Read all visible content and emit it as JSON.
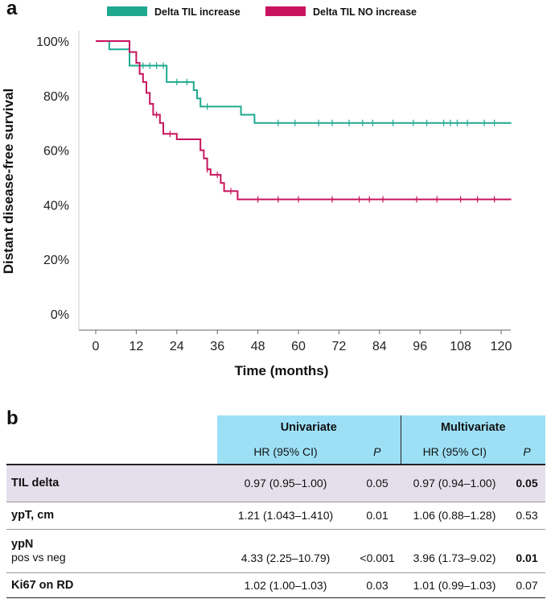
{
  "panel_a_label": "a",
  "panel_b_label": "b",
  "colors": {
    "increase": "#1ea98f",
    "no_increase": "#c8145e",
    "header_bg": "#9de0f6",
    "shaded_row": "#e5dfec"
  },
  "chart_data": {
    "type": "line",
    "title": "",
    "xlabel": "Time (months)",
    "ylabel": "Distant disease-free survival",
    "xlim": [
      -5,
      122
    ],
    "ylim": [
      -5,
      102
    ],
    "x_ticks": [
      0,
      12,
      24,
      36,
      48,
      60,
      72,
      84,
      96,
      108,
      120
    ],
    "y_ticks": [
      0,
      20,
      40,
      60,
      80,
      100
    ],
    "y_tick_labels": [
      "0%",
      "20%",
      "40%",
      "60%",
      "80%",
      "100%"
    ],
    "legend_position": "top",
    "series": [
      {
        "name": "Delta TIL increase",
        "color": "#1ea98f",
        "steps": [
          [
            0,
            100
          ],
          [
            4,
            100
          ],
          [
            4,
            97
          ],
          [
            10,
            97
          ],
          [
            10,
            91
          ],
          [
            21,
            91
          ],
          [
            21,
            85
          ],
          [
            29,
            85
          ],
          [
            29,
            82
          ],
          [
            30,
            82
          ],
          [
            30,
            79
          ],
          [
            31,
            79
          ],
          [
            31,
            76
          ],
          [
            43,
            76
          ],
          [
            43,
            73
          ],
          [
            47,
            73
          ],
          [
            47,
            70
          ],
          [
            123,
            70
          ]
        ],
        "censors": [
          [
            14,
            91
          ],
          [
            16,
            91
          ],
          [
            18,
            91
          ],
          [
            20,
            91
          ],
          [
            24,
            85
          ],
          [
            27,
            85
          ],
          [
            33,
            76
          ],
          [
            54,
            70
          ],
          [
            59,
            70
          ],
          [
            66,
            70
          ],
          [
            70,
            70
          ],
          [
            75,
            70
          ],
          [
            79,
            70
          ],
          [
            82,
            70
          ],
          [
            88,
            70
          ],
          [
            94,
            70
          ],
          [
            98,
            70
          ],
          [
            103,
            70
          ],
          [
            105,
            70
          ],
          [
            107,
            70
          ],
          [
            110,
            70
          ],
          [
            115,
            70
          ],
          [
            118,
            70
          ]
        ]
      },
      {
        "name": "Delta TIL NO increase",
        "color": "#c8145e",
        "steps": [
          [
            0,
            100
          ],
          [
            10,
            100
          ],
          [
            10,
            96
          ],
          [
            12,
            96
          ],
          [
            12,
            92
          ],
          [
            13,
            92
          ],
          [
            13,
            88
          ],
          [
            14,
            88
          ],
          [
            14,
            85
          ],
          [
            15,
            85
          ],
          [
            15,
            81
          ],
          [
            16,
            81
          ],
          [
            16,
            77
          ],
          [
            17,
            77
          ],
          [
            17,
            73
          ],
          [
            19,
            73
          ],
          [
            19,
            70
          ],
          [
            20,
            70
          ],
          [
            20,
            66
          ],
          [
            24,
            66
          ],
          [
            24,
            64
          ],
          [
            31,
            64
          ],
          [
            31,
            60
          ],
          [
            32,
            60
          ],
          [
            32,
            57
          ],
          [
            33,
            57
          ],
          [
            33,
            53
          ],
          [
            34,
            53
          ],
          [
            34,
            51
          ],
          [
            37,
            51
          ],
          [
            37,
            48
          ],
          [
            38,
            48
          ],
          [
            38,
            45
          ],
          [
            42,
            45
          ],
          [
            42,
            42
          ],
          [
            123,
            42
          ]
        ],
        "censors": [
          [
            18,
            73
          ],
          [
            22,
            66
          ],
          [
            33,
            53
          ],
          [
            36,
            51
          ],
          [
            40,
            45
          ],
          [
            48,
            42
          ],
          [
            54,
            42
          ],
          [
            60,
            42
          ],
          [
            70,
            42
          ],
          [
            78,
            42
          ],
          [
            81,
            42
          ],
          [
            85,
            42
          ],
          [
            95,
            42
          ],
          [
            101,
            42
          ],
          [
            108,
            42
          ],
          [
            113,
            42
          ],
          [
            118,
            42
          ]
        ]
      }
    ]
  },
  "table": {
    "univariate_label": "Univariate",
    "multivariate_label": "Multivariate",
    "hr_label": "HR (95% CI)",
    "p_label": "P",
    "rows": [
      {
        "label": "TIL delta",
        "sub": "",
        "uni_hr": "0.97 (0.95–1.00)",
        "uni_p": "0.05",
        "multi_hr": "0.97 (0.94–1.00)",
        "multi_p": "0.05"
      },
      {
        "label": "ypT, cm",
        "sub": "",
        "uni_hr": "1.21 (1.043–1.410)",
        "uni_p": "0.01",
        "multi_hr": "1.06 (0.88–1.28)",
        "multi_p": "0.53"
      },
      {
        "label": "ypN",
        "sub": "pos vs neg",
        "uni_hr": "4.33 (2.25–10.79)",
        "uni_p": "<0.001",
        "multi_hr": "3.96 (1.73–9.02)",
        "multi_p": "0.01"
      },
      {
        "label": "Ki67 on RD",
        "sub": "",
        "uni_hr": "1.02 (1.00–1.03)",
        "uni_p": "0.03",
        "multi_hr": "1.01 (0.99–1.03)",
        "multi_p": "0.07"
      }
    ]
  }
}
